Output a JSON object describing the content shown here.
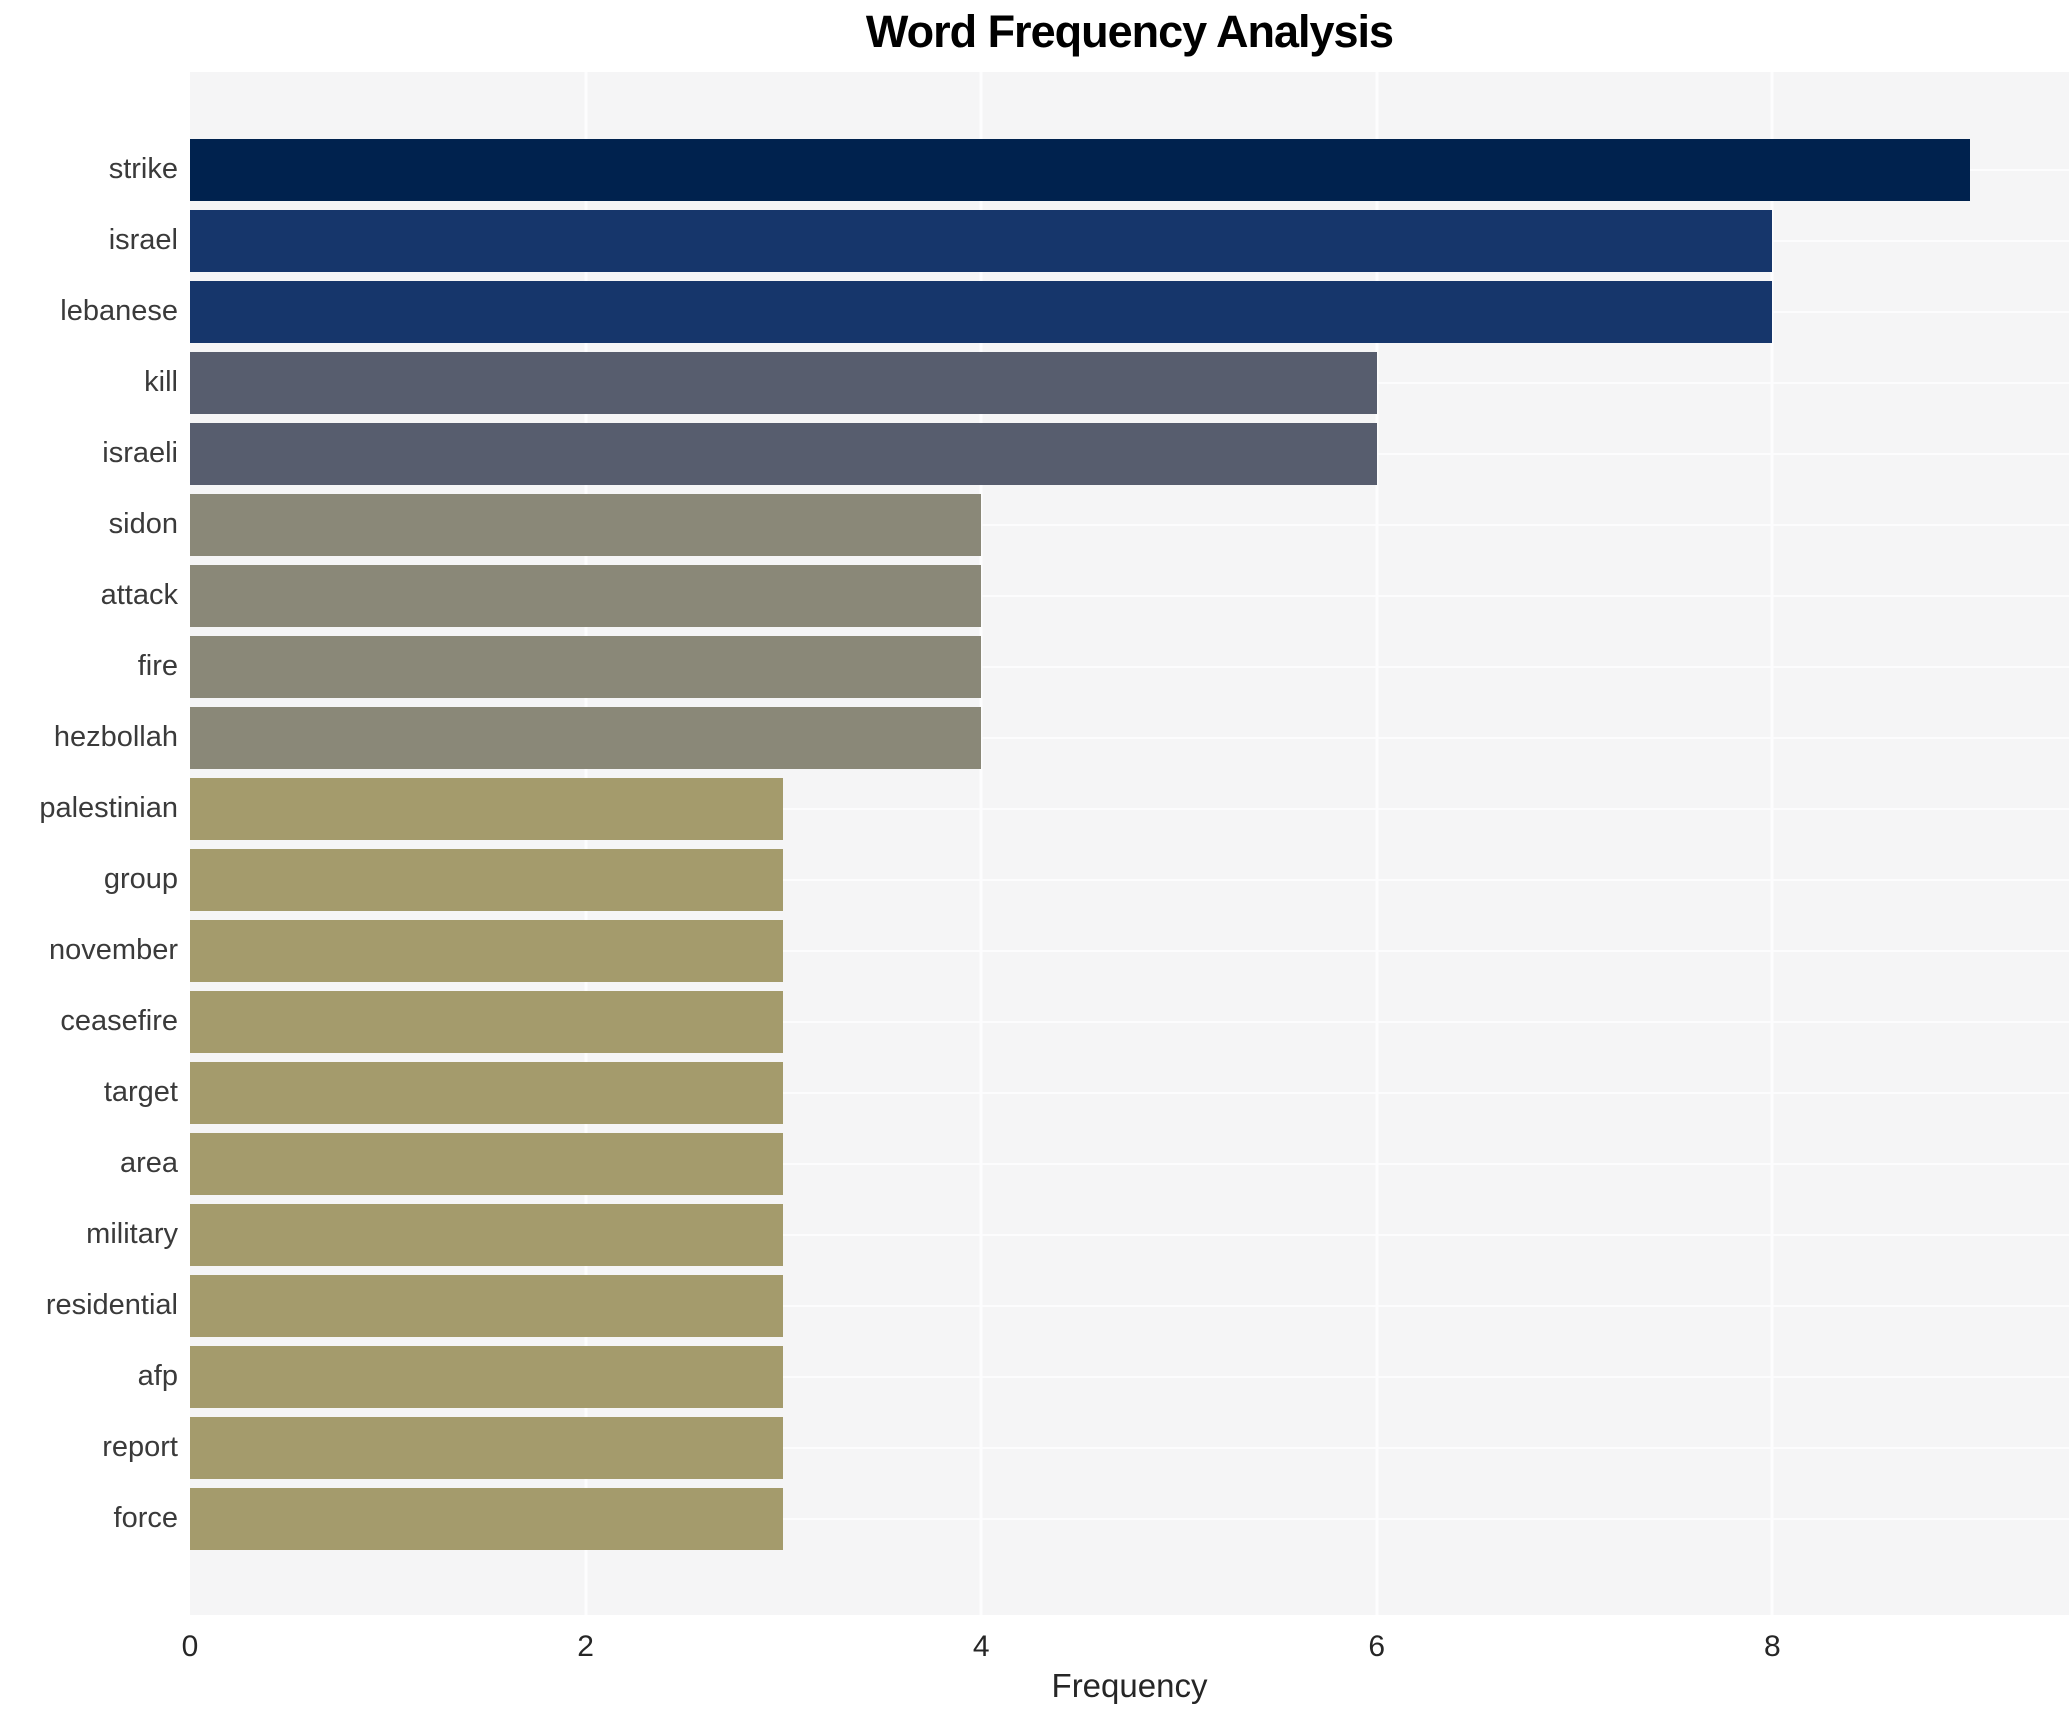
{
  "chart_data": {
    "type": "bar",
    "orientation": "horizontal",
    "title": "Word Frequency Analysis",
    "xlabel": "Frequency",
    "ylabel": "",
    "categories": [
      "strike",
      "israel",
      "lebanese",
      "kill",
      "israeli",
      "sidon",
      "attack",
      "fire",
      "hezbollah",
      "palestinian",
      "group",
      "november",
      "ceasefire",
      "target",
      "area",
      "military",
      "residential",
      "afp",
      "report",
      "force"
    ],
    "values": [
      9,
      8,
      8,
      6,
      6,
      4,
      4,
      4,
      4,
      3,
      3,
      3,
      3,
      3,
      3,
      3,
      3,
      3,
      3,
      3
    ],
    "bar_colors": [
      "#00224e",
      "#16366b",
      "#16366b",
      "#575d6e",
      "#575d6e",
      "#8a8878",
      "#8a8878",
      "#8a8878",
      "#8a8878",
      "#a49b6c",
      "#a49b6c",
      "#a49b6c",
      "#a49b6c",
      "#a49b6c",
      "#a49b6c",
      "#a49b6c",
      "#a49b6c",
      "#a49b6c",
      "#a49b6c",
      "#a49b6c"
    ],
    "xticks": [
      0,
      2,
      4,
      6,
      8
    ],
    "xlim": [
      0,
      9.5
    ],
    "grid": "on",
    "legend": "none",
    "plot_background": "#f5f5f6",
    "gridline_color": "#fdfdfe",
    "title_color": "#000000",
    "tick_label_color": "#262626",
    "category_label_color": "#3a3a3a"
  }
}
